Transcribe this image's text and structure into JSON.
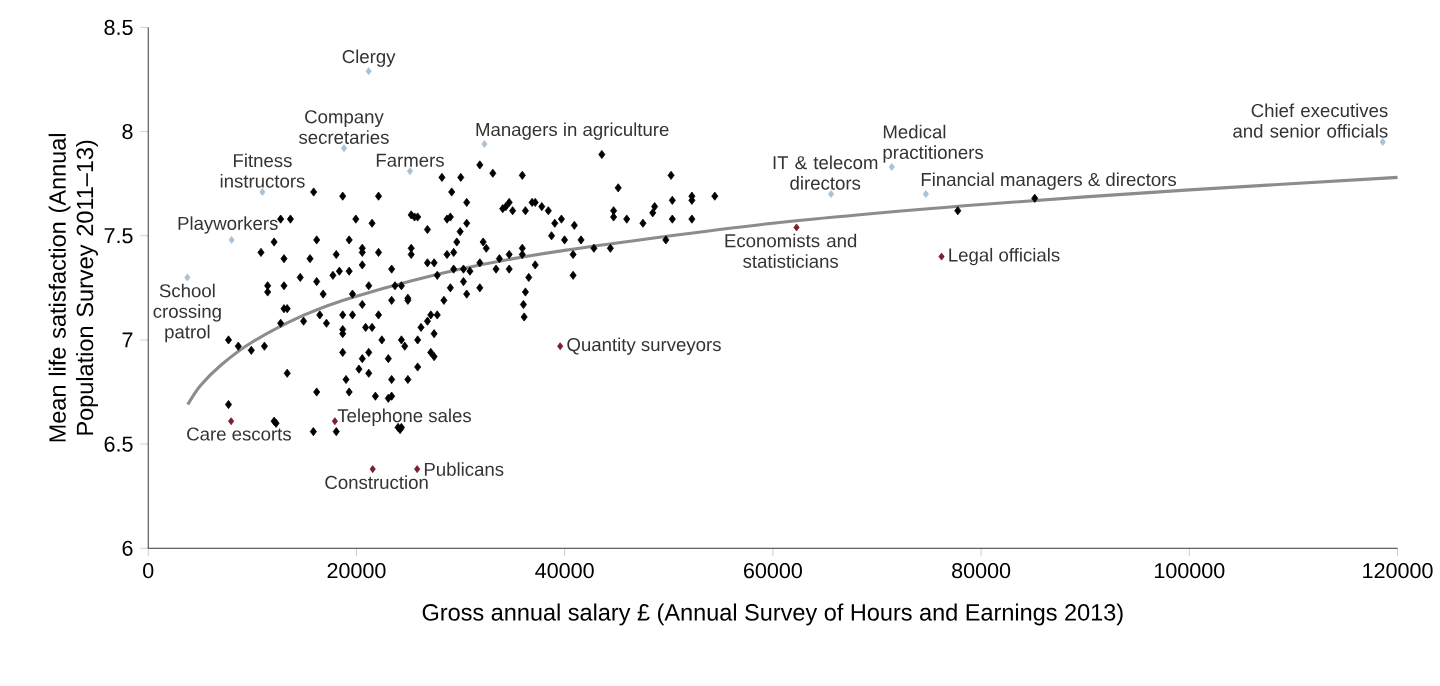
{
  "chart_data": {
    "type": "scatter",
    "xlabel": "Gross annual salary £ (Annual Survey of Hours and Earnings 2013)",
    "ylabel": "Mean life satisfaction (Annual Population Survey 2011–13)",
    "xlim": [
      0,
      120000
    ],
    "ylim": [
      6,
      8.5
    ],
    "xticks": [
      0,
      20000,
      40000,
      60000,
      80000,
      100000,
      120000
    ],
    "yticks": [
      6,
      6.5,
      7,
      7.5,
      8,
      8.5
    ],
    "marker": "diamond",
    "series": [
      {
        "color": "#000000",
        "x": [
          15890,
          18680,
          22120,
          25260,
          28210,
          30020,
          29150,
          31850,
          33100,
          35930,
          43570,
          45140,
          50220,
          52220,
          54420,
          50340,
          34050,
          35000,
          37170,
          38430,
          39690,
          40930,
          44700,
          45960,
          48460,
          12720,
          13660,
          52220,
          48640,
          50340,
          52220,
          49720,
          47520,
          44700,
          44390,
          42810,
          41570,
          39990,
          38740,
          39050,
          37800,
          36870,
          40810,
          40810,
          37170,
          36550,
          36230,
          36040,
          36110,
          34350,
          35930,
          34670,
          33410,
          32170,
          31850,
          30900,
          30590,
          29020,
          29640,
          28700,
          29340,
          30280,
          30590,
          29020,
          28400,
          27760,
          26820,
          27460,
          27140,
          25880,
          25880,
          24640,
          24940,
          23380,
          23060,
          21820,
          24320,
          25880,
          21500,
          20560,
          23380,
          24320,
          23380,
          22120,
          20880,
          22440,
          21180,
          20240,
          19620,
          25260,
          26820,
          27760,
          13040,
          14600,
          11470,
          16800,
          16480,
          13350,
          12720,
          14920,
          17120,
          18680,
          18680,
          7710,
          8650,
          9900,
          11160,
          18680,
          20560,
          21180,
          19000,
          19300,
          16180,
          13350,
          7710,
          12090,
          15860,
          18060,
          24000,
          23380,
          23060,
          24320,
          26200,
          27460,
          21500,
          20560,
          23700,
          24940,
          21180,
          16180,
          18360,
          20560,
          10830,
          12090,
          13040,
          11470,
          13040,
          15540,
          16180,
          18060,
          19940,
          19300,
          20560,
          22120,
          17740,
          19300,
          19620,
          18680,
          25580,
          26820,
          28700,
          29960,
          30590,
          25260,
          27460,
          29340,
          30280,
          32470,
          33730,
          34670,
          35930,
          34670,
          36230,
          31850,
          24940,
          27140,
          77760,
          85150,
          12280,
          24190
        ],
        "values": [
          7.71,
          7.69,
          7.69,
          7.6,
          7.78,
          7.78,
          7.71,
          7.84,
          7.8,
          7.79,
          7.89,
          7.73,
          7.79,
          7.69,
          7.69,
          7.67,
          7.63,
          7.62,
          7.66,
          7.62,
          7.58,
          7.55,
          7.62,
          7.58,
          7.61,
          7.58,
          7.58,
          7.58,
          7.64,
          7.58,
          7.67,
          7.48,
          7.56,
          7.59,
          7.44,
          7.44,
          7.48,
          7.48,
          7.5,
          7.56,
          7.64,
          7.66,
          7.41,
          7.31,
          7.36,
          7.3,
          7.23,
          7.17,
          7.11,
          7.64,
          7.41,
          7.41,
          7.34,
          7.47,
          7.37,
          7.33,
          7.56,
          7.59,
          7.47,
          7.41,
          7.34,
          7.28,
          7.22,
          7.25,
          7.19,
          7.12,
          7.09,
          7.03,
          6.94,
          6.87,
          7.0,
          6.97,
          6.81,
          6.81,
          6.72,
          6.73,
          6.58,
          7.59,
          7.56,
          7.44,
          7.34,
          7.26,
          7.19,
          7.12,
          7.06,
          7.0,
          6.94,
          6.86,
          7.12,
          7.44,
          7.37,
          7.31,
          7.26,
          7.3,
          7.26,
          7.22,
          7.12,
          7.15,
          7.08,
          7.09,
          7.08,
          7.12,
          7.05,
          7.0,
          6.97,
          6.95,
          6.97,
          6.94,
          6.91,
          6.84,
          6.81,
          6.75,
          6.75,
          6.84,
          6.69,
          6.61,
          6.56,
          6.56,
          6.58,
          6.73,
          6.91,
          7.0,
          7.06,
          6.92,
          7.06,
          7.17,
          7.26,
          7.19,
          7.26,
          7.28,
          7.33,
          7.36,
          7.42,
          7.47,
          7.39,
          7.23,
          7.15,
          7.39,
          7.48,
          7.41,
          7.58,
          7.48,
          7.42,
          7.42,
          7.31,
          7.33,
          7.22,
          7.03,
          7.59,
          7.53,
          7.58,
          7.52,
          7.66,
          7.41,
          7.37,
          7.42,
          7.34,
          7.44,
          7.39,
          7.34,
          7.44,
          7.66,
          7.62,
          7.25,
          7.2,
          7.12,
          7.62,
          7.68,
          6.6,
          6.57
        ]
      },
      {
        "color": "#a9c2d6",
        "x": [
          21170,
          18800,
          10970,
          25140,
          32290,
          8010,
          3760,
          65590,
          71420,
          74690,
          118580
        ],
        "values": [
          8.29,
          7.92,
          7.71,
          7.81,
          7.94,
          7.48,
          7.3,
          7.7,
          7.83,
          7.7,
          7.95
        ]
      },
      {
        "color": "#7a1f2e",
        "x": [
          62270,
          76200,
          39570,
          17930,
          7960,
          21560,
          25830
        ],
        "values": [
          7.54,
          7.4,
          6.97,
          6.61,
          6.61,
          6.38,
          6.38
        ]
      },
      {
        "type": "line",
        "marker": "none",
        "color": "#8c8c8c",
        "x": [
          3800,
          5000,
          7000,
          10000,
          15000,
          20000,
          30000,
          40000,
          60000,
          80000,
          100000,
          120000
        ],
        "values": [
          6.69,
          6.78,
          6.88,
          6.99,
          7.12,
          7.21,
          7.34,
          7.43,
          7.56,
          7.65,
          7.72,
          7.78
        ]
      }
    ],
    "annotations": [
      {
        "text": "Clergy",
        "x": 21170,
        "y": 8.29
      },
      {
        "text": "Company secretaries",
        "x": 18800,
        "y": 7.92
      },
      {
        "text": "Fitness instructors",
        "x": 10970,
        "y": 7.71
      },
      {
        "text": "Farmers",
        "x": 25140,
        "y": 7.81
      },
      {
        "text": "Managers in agriculture",
        "x": 32290,
        "y": 7.94
      },
      {
        "text": "Playworkers",
        "x": 8010,
        "y": 7.48
      },
      {
        "text": "School crossing patrol",
        "x": 3760,
        "y": 7.3
      },
      {
        "text": "IT & telecom directors",
        "x": 65590,
        "y": 7.7
      },
      {
        "text": "Medical practitioners",
        "x": 71420,
        "y": 7.83
      },
      {
        "text": "Financial managers & directors",
        "x": 74690,
        "y": 7.7
      },
      {
        "text": "Chief executives and senior officials",
        "x": 118580,
        "y": 7.95
      },
      {
        "text": "Economists and statisticians",
        "x": 62270,
        "y": 7.54
      },
      {
        "text": "Legal officials",
        "x": 76200,
        "y": 7.4
      },
      {
        "text": "Quantity surveyors",
        "x": 39570,
        "y": 6.97
      },
      {
        "text": "Telephone sales",
        "x": 17930,
        "y": 6.61
      },
      {
        "text": "Care escorts",
        "x": 7960,
        "y": 6.61
      },
      {
        "text": "Construction",
        "x": 21560,
        "y": 6.38
      },
      {
        "text": "Publicans",
        "x": 25830,
        "y": 6.38
      }
    ]
  }
}
